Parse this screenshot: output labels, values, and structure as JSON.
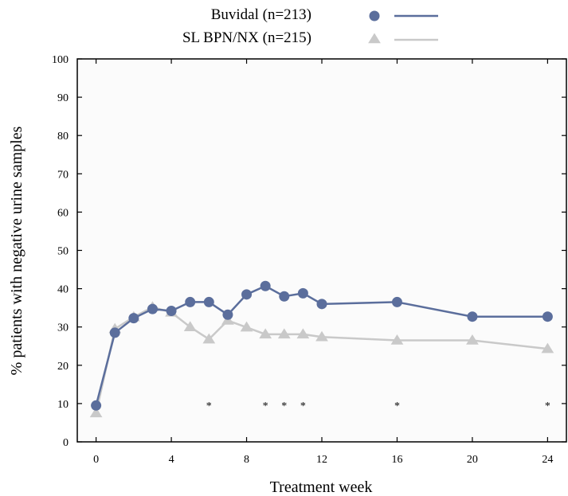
{
  "chart_data": {
    "type": "line",
    "title": "",
    "xlabel": "Treatment week",
    "ylabel": "% patients with negative urine samples",
    "xlim": [
      -1,
      25
    ],
    "ylim": [
      0,
      100
    ],
    "xticks": [
      0,
      4,
      8,
      12,
      16,
      20,
      24
    ],
    "yticks": [
      0,
      10,
      20,
      30,
      40,
      50,
      60,
      70,
      80,
      90,
      100
    ],
    "grid": false,
    "legend_position": "top",
    "series": [
      {
        "name": "Buvidal (n=213)",
        "color": "#5b6e9c",
        "marker": "circle",
        "x": [
          0,
          1,
          2,
          3,
          4,
          5,
          6,
          7,
          8,
          9,
          10,
          11,
          12,
          16,
          20,
          24
        ],
        "values": [
          9.5,
          28.5,
          32.3,
          34.7,
          34.2,
          36.5,
          36.5,
          33.2,
          38.5,
          40.7,
          38.0,
          38.8,
          36.0,
          36.5,
          32.7,
          32.7
        ]
      },
      {
        "name": "SL BPN/NX (n=215)",
        "color": "#c9c9c9",
        "marker": "triangle",
        "x": [
          0,
          1,
          2,
          3,
          4,
          5,
          6,
          7,
          8,
          9,
          10,
          11,
          12,
          16,
          20,
          24
        ],
        "values": [
          7.5,
          29.5,
          32.6,
          35.2,
          33.8,
          30.0,
          26.8,
          31.7,
          29.9,
          28.1,
          28.1,
          28.1,
          27.4,
          26.5,
          26.5,
          24.3
        ]
      }
    ],
    "annotations": {
      "symbol": "*",
      "x": [
        6,
        9,
        10,
        11,
        16,
        24
      ],
      "y": 10
    }
  }
}
